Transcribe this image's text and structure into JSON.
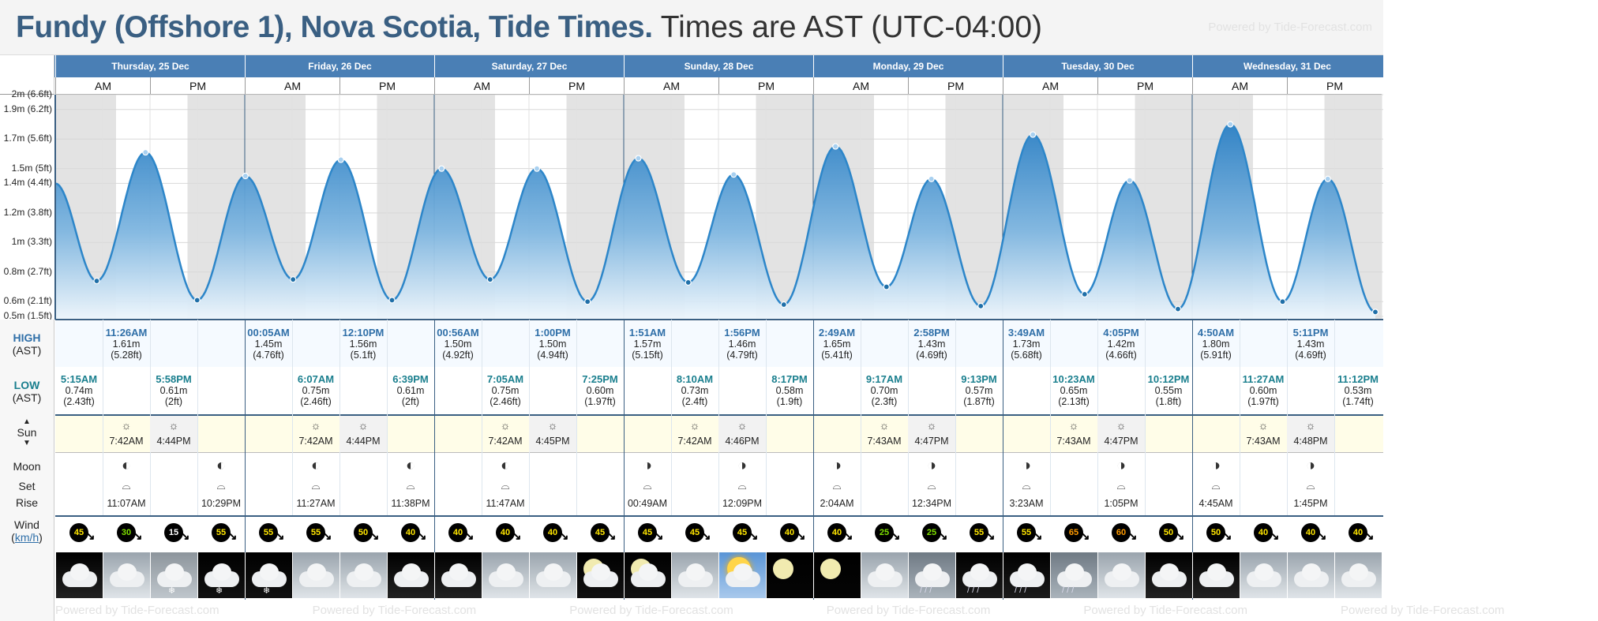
{
  "header": {
    "title_bold": "Fundy (Offshore 1), Nova Scotia, Tide Times.",
    "title_tz": "Times are AST (UTC-04:00)",
    "powered": "Powered by Tide-Forecast.com"
  },
  "days": [
    "Thursday, 25 Dec",
    "Friday, 26 Dec",
    "Saturday, 27 Dec",
    "Sunday, 28 Dec",
    "Monday, 29 Dec",
    "Tuesday, 30 Dec",
    "Wednesday, 31 Dec"
  ],
  "ampm": {
    "am": "AM",
    "pm": "PM"
  },
  "y_axis": {
    "labels": [
      "2m (6.6ft)",
      "1.9m (6.2ft)",
      "1.7m (5.6ft)",
      "1.5m (5ft)",
      "1.4m (4.4ft)",
      "1.2m (3.8ft)",
      "1m (3.3ft)",
      "0.8m (2.7ft)",
      "0.6m (2.1ft)",
      "0.5m (1.5ft)"
    ]
  },
  "labels": {
    "high": "HIGH",
    "high_sub": "(AST)",
    "low": "LOW",
    "low_sub": "(AST)",
    "sun": "Sun",
    "moon": "Moon",
    "set": "Set",
    "rise": "Rise",
    "wind": "Wind",
    "wind_unit": "km/h"
  },
  "highs": [
    {
      "time": "11:26AM",
      "m": "1.61m",
      "ft": "(5.28ft)"
    },
    {
      "time": "00:05AM",
      "m": "1.45m",
      "ft": "(4.76ft)"
    },
    {
      "time": "12:10PM",
      "m": "1.56m",
      "ft": "(5.1ft)"
    },
    {
      "time": "00:56AM",
      "m": "1.50m",
      "ft": "(4.92ft)"
    },
    {
      "time": "1:00PM",
      "m": "1.50m",
      "ft": "(4.94ft)"
    },
    {
      "time": "1:51AM",
      "m": "1.57m",
      "ft": "(5.15ft)"
    },
    {
      "time": "1:56PM",
      "m": "1.46m",
      "ft": "(4.79ft)"
    },
    {
      "time": "2:49AM",
      "m": "1.65m",
      "ft": "(5.41ft)"
    },
    {
      "time": "2:58PM",
      "m": "1.43m",
      "ft": "(4.69ft)"
    },
    {
      "time": "3:49AM",
      "m": "1.73m",
      "ft": "(5.68ft)"
    },
    {
      "time": "4:05PM",
      "m": "1.42m",
      "ft": "(4.66ft)"
    },
    {
      "time": "4:50AM",
      "m": "1.80m",
      "ft": "(5.91ft)"
    },
    {
      "time": "5:11PM",
      "m": "1.43m",
      "ft": "(4.69ft)"
    }
  ],
  "lows": [
    {
      "time": "5:15AM",
      "m": "0.74m",
      "ft": "(2.43ft)"
    },
    {
      "time": "5:58PM",
      "m": "0.61m",
      "ft": "(2ft)"
    },
    {
      "time": "6:07AM",
      "m": "0.75m",
      "ft": "(2.46ft)"
    },
    {
      "time": "6:39PM",
      "m": "0.61m",
      "ft": "(2ft)"
    },
    {
      "time": "7:05AM",
      "m": "0.75m",
      "ft": "(2.46ft)"
    },
    {
      "time": "7:25PM",
      "m": "0.60m",
      "ft": "(1.97ft)"
    },
    {
      "time": "8:10AM",
      "m": "0.73m",
      "ft": "(2.4ft)"
    },
    {
      "time": "8:17PM",
      "m": "0.58m",
      "ft": "(1.9ft)"
    },
    {
      "time": "9:17AM",
      "m": "0.70m",
      "ft": "(2.3ft)"
    },
    {
      "time": "9:13PM",
      "m": "0.57m",
      "ft": "(1.87ft)"
    },
    {
      "time": "10:23AM",
      "m": "0.65m",
      "ft": "(2.13ft)"
    },
    {
      "time": "10:12PM",
      "m": "0.55m",
      "ft": "(1.8ft)"
    },
    {
      "time": "11:27AM",
      "m": "0.60m",
      "ft": "(1.97ft)"
    },
    {
      "time": "11:12PM",
      "m": "0.53m",
      "ft": "(1.74ft)"
    }
  ],
  "sun": [
    {
      "rise": "7:42AM",
      "set": "4:44PM"
    },
    {
      "rise": "7:42AM",
      "set": "4:44PM"
    },
    {
      "rise": "7:42AM",
      "set": "4:45PM"
    },
    {
      "rise": "7:42AM",
      "set": "4:46PM"
    },
    {
      "rise": "7:43AM",
      "set": "4:47PM"
    },
    {
      "rise": "7:43AM",
      "set": "4:47PM"
    },
    {
      "rise": "7:43AM",
      "set": "4:48PM"
    }
  ],
  "moon": [
    {
      "rise": "11:07AM",
      "set": "10:29PM"
    },
    {
      "rise": "11:27AM",
      "set": "11:38PM"
    },
    {
      "rise": "11:47AM",
      "set": ""
    },
    {
      "rise": "00:49AM",
      "set": "12:09PM"
    },
    {
      "rise": "2:04AM",
      "set": "12:34PM"
    },
    {
      "rise": "3:23AM",
      "set": "1:05PM"
    },
    {
      "rise": "4:45AM",
      "set": "1:45PM"
    }
  ],
  "wind": [
    "45",
    "30",
    "15",
    "55",
    "55",
    "55",
    "50",
    "40",
    "40",
    "40",
    "40",
    "45",
    "45",
    "45",
    "45",
    "40",
    "40",
    "25",
    "25",
    "55",
    "55",
    "65",
    "60",
    "50",
    "50",
    "40",
    "40",
    "40"
  ],
  "wind_colors": [
    "#ffe600",
    "#7ee000",
    "#ffffff",
    "#ffe600",
    "#ffe600",
    "#ffe600",
    "#ffe600",
    "#ffe600",
    "#ffe600",
    "#ffe600",
    "#ffe600",
    "#ffe600",
    "#ffe600",
    "#ffe600",
    "#ffe600",
    "#ffe600",
    "#ffe600",
    "#7ee000",
    "#7ee000",
    "#ffe600",
    "#ffe600",
    "#ff9a00",
    "#ff9a00",
    "#ffe600",
    "#ffe600",
    "#ffe600",
    "#ffe600",
    "#ffe600"
  ],
  "weather": [
    "cloud-night",
    "cloud",
    "snow",
    "snow-night",
    "snow-night",
    "cloud",
    "cloud",
    "cloud-night",
    "cloud-night",
    "cloud",
    "cloud",
    "moon-cloud",
    "moon-cloud",
    "cloud",
    "sun-cloud",
    "moon",
    "moon",
    "cloud",
    "rain",
    "rain-night",
    "rain-night",
    "rain",
    "cloud",
    "cloud-night",
    "cloud-night",
    "cloud",
    "cloud",
    "cloud"
  ],
  "chart_data": {
    "type": "area",
    "ylabel": "",
    "ylim": [
      0.5,
      2.0
    ],
    "series": [
      {
        "points": [
          {
            "t": 0,
            "v": 1.4
          },
          {
            "t": 5.25,
            "v": 0.74
          },
          {
            "t": 11.43,
            "v": 1.61
          },
          {
            "t": 17.97,
            "v": 0.61
          },
          {
            "t": 24.08,
            "v": 1.45
          },
          {
            "t": 30.12,
            "v": 0.75
          },
          {
            "t": 36.17,
            "v": 1.56
          },
          {
            "t": 42.65,
            "v": 0.61
          },
          {
            "t": 48.93,
            "v": 1.5
          },
          {
            "t": 55.08,
            "v": 0.75
          },
          {
            "t": 61.0,
            "v": 1.5
          },
          {
            "t": 67.42,
            "v": 0.6
          },
          {
            "t": 73.85,
            "v": 1.57
          },
          {
            "t": 80.17,
            "v": 0.73
          },
          {
            "t": 85.93,
            "v": 1.46
          },
          {
            "t": 92.28,
            "v": 0.58
          },
          {
            "t": 98.82,
            "v": 1.65
          },
          {
            "t": 105.28,
            "v": 0.7
          },
          {
            "t": 110.97,
            "v": 1.43
          },
          {
            "t": 117.22,
            "v": 0.57
          },
          {
            "t": 123.82,
            "v": 1.73
          },
          {
            "t": 130.38,
            "v": 0.65
          },
          {
            "t": 136.08,
            "v": 1.42
          },
          {
            "t": 142.2,
            "v": 0.55
          },
          {
            "t": 148.83,
            "v": 1.8
          },
          {
            "t": 155.45,
            "v": 0.6
          },
          {
            "t": 161.18,
            "v": 1.43
          },
          {
            "t": 167.2,
            "v": 0.53
          }
        ]
      }
    ]
  },
  "colors": {
    "accent": "#3a5f82",
    "dayrow": "#4a7fb5",
    "tide_line": "#2d86c9",
    "night": "#e3e3e3"
  }
}
